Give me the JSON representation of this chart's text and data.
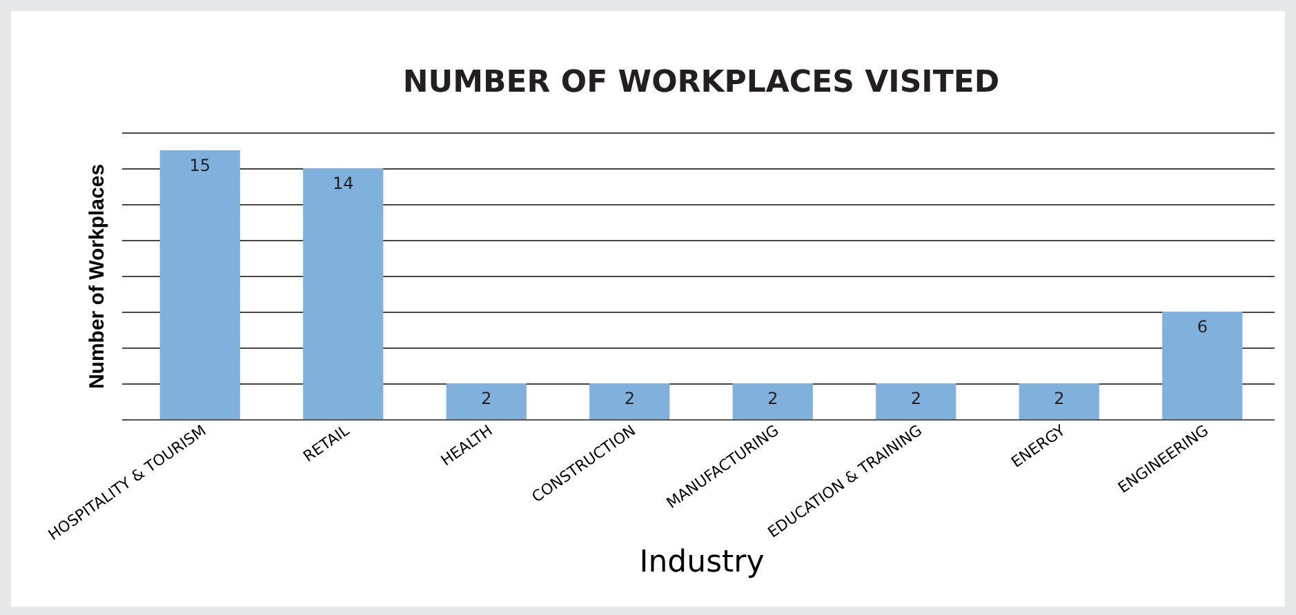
{
  "chart_data": {
    "type": "bar",
    "title": "NUMBER OF WORKPLACES VISITED",
    "xlabel": "Industry",
    "ylabel": "Number of Workplaces",
    "categories": [
      "HOSPITALITY & TOURISM",
      "RETAIL",
      "HEALTH",
      "CONSTRUCTION",
      "MANUFACTURING",
      "EDUCATION & TRAINING",
      "ENERGY",
      "ENGINEERING"
    ],
    "values": [
      15,
      14,
      2,
      2,
      2,
      2,
      2,
      6
    ],
    "color": "#7fb1dc",
    "ylim": [
      0,
      16
    ],
    "yticks": [
      {
        "value": 0,
        "label": null
      },
      {
        "value": 2,
        "label": null
      },
      {
        "value": 4,
        "label": null
      },
      {
        "value": 6,
        "label": null
      },
      {
        "value": 8,
        "label": null
      },
      {
        "value": 10,
        "label": null
      },
      {
        "value": 12,
        "label": null
      },
      {
        "value": 14,
        "label": null
      },
      {
        "value": 16,
        "label": null
      }
    ],
    "grid": "y",
    "tick_labels": "x",
    "data_labels": true
  }
}
